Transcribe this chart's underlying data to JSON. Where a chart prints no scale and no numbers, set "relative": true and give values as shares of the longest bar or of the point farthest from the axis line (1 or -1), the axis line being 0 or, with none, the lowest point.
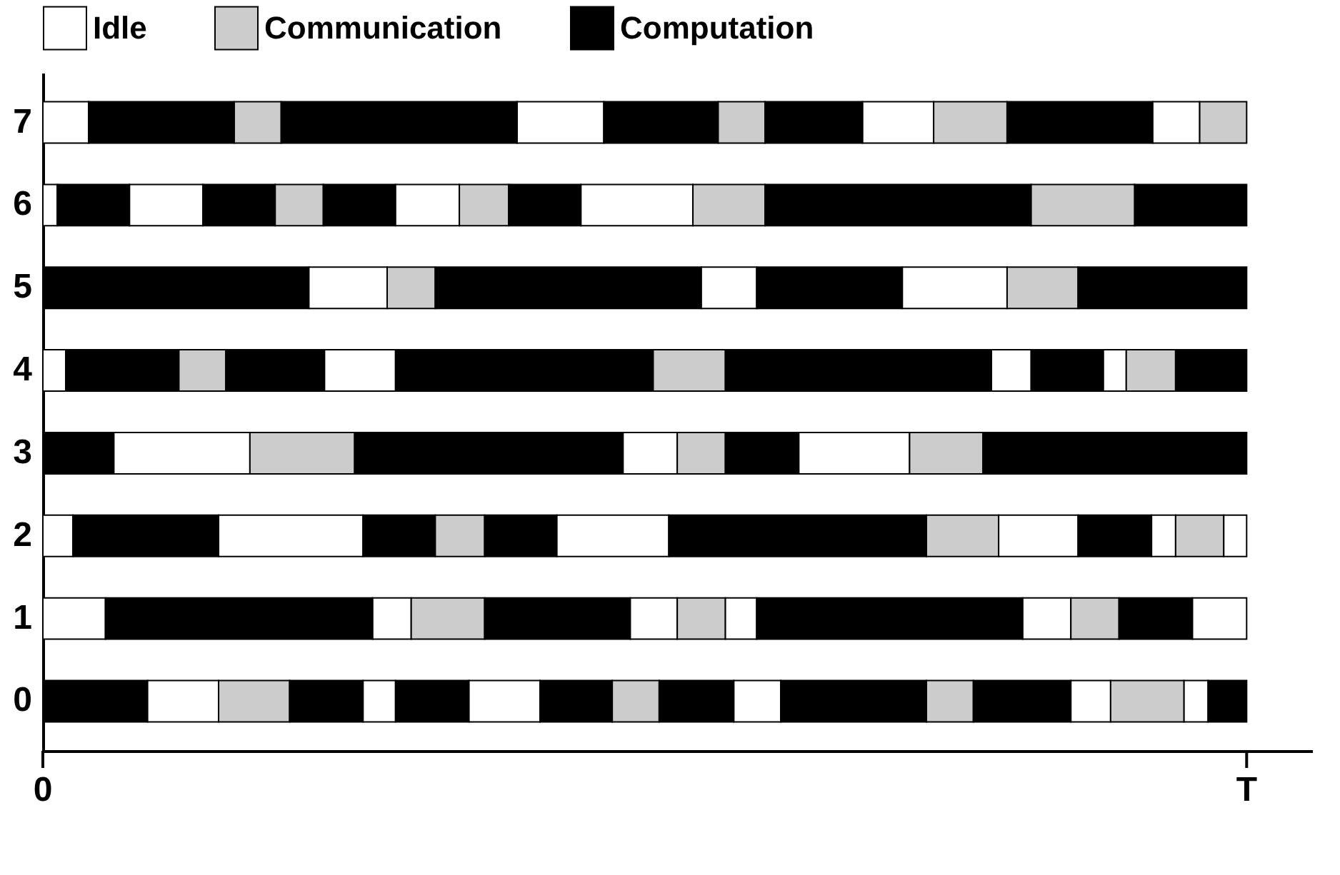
{
  "chart_data": {
    "type": "bar",
    "orientation": "horizontal",
    "stacked": true,
    "relative": true,
    "legend": "top",
    "categories": [
      "7",
      "6",
      "5",
      "4",
      "3",
      "2",
      "1",
      "0"
    ],
    "annotations": [
      "0",
      "T"
    ],
    "series": [
      {
        "name": "Idle",
        "color": "#ffffff",
        "values": [
          null,
          null,
          null,
          null,
          null,
          null,
          null,
          null
        ]
      },
      {
        "name": "Communication",
        "color": "#cccccc",
        "values": [
          null,
          null,
          null,
          null,
          null,
          null,
          null,
          null
        ]
      },
      {
        "name": "Computation",
        "color": "#000000",
        "values": [
          null,
          null,
          null,
          null,
          null,
          null,
          null,
          null
        ]
      },
      {
        "values": [
          0.038,
          0.012,
          0.221,
          0.019,
          0.059,
          0.025,
          0.052,
          0.087
        ],
        "colors": [
          "#ffffff",
          "#ffffff",
          "#000000",
          "#ffffff",
          "#000000",
          "#ffffff",
          "#ffffff",
          "#000000"
        ]
      },
      {
        "values": [
          0.121,
          0.06,
          0.065,
          0.094,
          0.113,
          0.121,
          0.222,
          0.059
        ],
        "colors": [
          "#000000",
          "#000000",
          "#ffffff",
          "#000000",
          "#ffffff",
          "#000000",
          "#000000",
          "#ffffff"
        ]
      },
      {
        "values": [
          0.039,
          0.061,
          0.04,
          0.039,
          0.087,
          0.12,
          0.032,
          0.059
        ],
        "colors": [
          "#cccccc",
          "#ffffff",
          "#cccccc",
          "#cccccc",
          "#cccccc",
          "#ffffff",
          "#ffffff",
          "#cccccc"
        ]
      },
      {
        "values": [
          0.196,
          0.06,
          0.221,
          0.082,
          0.223,
          0.06,
          0.061,
          0.061
        ],
        "colors": [
          "#000000",
          "#000000",
          "#000000",
          "#000000",
          "#000000",
          "#000000",
          "#cccccc",
          "#000000"
        ]
      },
      {
        "values": [
          0.072,
          0.04,
          0.046,
          0.059,
          0.045,
          0.041,
          0.121,
          0.027
        ],
        "colors": [
          "#ffffff",
          "#cccccc",
          "#ffffff",
          "#ffffff",
          "#ffffff",
          "#cccccc",
          "#000000",
          "#ffffff"
        ]
      },
      {
        "values": [
          0.095,
          0.06,
          0.121,
          0.214,
          0.04,
          0.06,
          0.039,
          0.061
        ],
        "colors": [
          "#000000",
          "#000000",
          "#000000",
          "#000000",
          "#cccccc",
          "#000000",
          "#ffffff",
          "#000000"
        ]
      },
      {
        "values": [
          0.039,
          0.053,
          0.087,
          0.06,
          0.061,
          0.093,
          0.04,
          0.059
        ],
        "colors": [
          "#cccccc",
          "#ffffff",
          "#ffffff",
          "#cccccc",
          "#000000",
          "#ffffff",
          "#cccccc",
          "#ffffff"
        ]
      },
      {
        "values": [
          0.081,
          0.041,
          0.059,
          0.221,
          0.092,
          0.214,
          0.026,
          0.06
        ],
        "colors": [
          "#000000",
          "#cccccc",
          "#cccccc",
          "#000000",
          "#ffffff",
          "#000000",
          "#ffffff",
          "#000000"
        ]
      },
      {
        "values": [
          0.059,
          0.06,
          0.14,
          0.033,
          0.061,
          0.06,
          0.221,
          0.039
        ],
        "colors": [
          "#ffffff",
          "#000000",
          "#000000",
          "#ffffff",
          "#cccccc",
          "#cccccc",
          "#000000",
          "#cccccc"
        ]
      },
      {
        "values": [
          0.061,
          0.093,
          null,
          0.06,
          0.219,
          0.066,
          0.04,
          0.062
        ],
        "colors": [
          "#cccccc",
          "#ffffff",
          null,
          "#000000",
          "#000000",
          "#ffffff",
          "#ffffff",
          "#000000"
        ]
      },
      {
        "values": [
          0.121,
          0.06,
          null,
          0.019,
          null,
          0.061,
          0.04,
          0.039
        ],
        "colors": [
          "#000000",
          "#cccccc",
          null,
          "#ffffff",
          null,
          "#000000",
          "#cccccc",
          "#ffffff"
        ]
      },
      {
        "values": [
          0.039,
          0.221,
          null,
          0.041,
          null,
          0.02,
          0.061,
          0.121
        ],
        "colors": [
          "#ffffff",
          "#000000",
          null,
          "#cccccc",
          null,
          "#ffffff",
          "#000000",
          "#000000"
        ]
      },
      {
        "values": [
          0.039,
          0.086,
          null,
          0.059,
          null,
          0.04,
          0.045,
          0.039
        ],
        "colors": [
          "#cccccc",
          "#cccccc",
          null,
          "#000000",
          null,
          "#cccccc",
          "#ffffff",
          "#cccccc"
        ]
      },
      {
        "values": [
          null,
          0.093,
          null,
          null,
          null,
          0.019,
          null,
          0.081
        ],
        "colors": [
          null,
          "#000000",
          null,
          null,
          null,
          "#ffffff",
          null,
          "#000000"
        ]
      },
      {
        "values": [
          null,
          null,
          null,
          null,
          null,
          null,
          null,
          0.033
        ],
        "colors": [
          null,
          null,
          null,
          null,
          null,
          null,
          null,
          "#ffffff"
        ]
      },
      {
        "values": [
          null,
          null,
          null,
          null,
          null,
          null,
          null,
          0.061
        ],
        "colors": [
          null,
          null,
          null,
          null,
          null,
          null,
          null,
          "#cccccc"
        ]
      },
      {
        "values": [
          null,
          null,
          null,
          null,
          null,
          null,
          null,
          0.02
        ],
        "colors": [
          null,
          null,
          null,
          null,
          null,
          null,
          null,
          "#ffffff"
        ]
      },
      {
        "values": [
          null,
          null,
          null,
          null,
          null,
          null,
          null,
          0.032
        ],
        "colors": [
          null,
          null,
          null,
          null,
          null,
          null,
          null,
          "#000000"
        ]
      }
    ]
  }
}
